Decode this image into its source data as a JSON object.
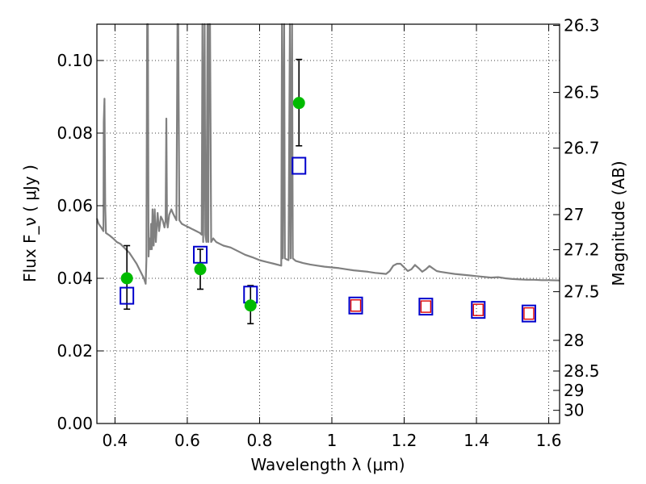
{
  "chart_data": {
    "type": "scatter",
    "xlabel": "Wavelength  λ (μm)",
    "ylabel": "Flux  F_ν ( μJy )",
    "y2label": "Magnitude (AB)",
    "xlim": [
      0.35,
      1.63
    ],
    "ylim": [
      0.0,
      0.11
    ],
    "grid": true,
    "x_ticks": [
      "0.4",
      "0.6",
      "0.8",
      "1",
      "1.2",
      "1.4",
      "1.6"
    ],
    "x_tick_values": [
      0.4,
      0.6,
      0.8,
      1.0,
      1.2,
      1.4,
      1.6
    ],
    "y_ticks": [
      "0.00",
      "0.02",
      "0.04",
      "0.06",
      "0.08",
      "0.10"
    ],
    "y_tick_values": [
      0.0,
      0.02,
      0.04,
      0.06,
      0.08,
      0.1
    ],
    "mag_ticks": [
      "26.3",
      "26.5",
      "26.7",
      "27",
      "27.2",
      "27.5",
      "28",
      "28.5",
      "29",
      "30"
    ],
    "mag_tick_values": [
      26.3,
      26.5,
      26.7,
      27.0,
      27.2,
      27.5,
      28.0,
      28.5,
      29.0,
      30.0
    ],
    "colors": {
      "template": "#808080",
      "observed": "#00bb00",
      "model_box": "#0000cc",
      "model_box_inner": "#dd0000",
      "errorbar": "#000000"
    },
    "observed": [
      {
        "x": 0.433,
        "y": 0.04,
        "yerr_low": 0.0085,
        "yerr_high": 0.009
      },
      {
        "x": 0.636,
        "y": 0.0425,
        "yerr_low": 0.0055,
        "yerr_high": 0.0055
      },
      {
        "x": 0.775,
        "y": 0.0325,
        "yerr_low": 0.005,
        "yerr_high": 0.0055
      },
      {
        "x": 0.909,
        "y": 0.0883,
        "yerr_low": 0.0118,
        "yerr_high": 0.012
      }
    ],
    "model_photometry": [
      {
        "x": 0.433,
        "y": 0.0352,
        "inner": false
      },
      {
        "x": 0.636,
        "y": 0.0465,
        "inner": false
      },
      {
        "x": 0.775,
        "y": 0.0355,
        "inner": false
      },
      {
        "x": 0.909,
        "y": 0.071,
        "inner": false
      },
      {
        "x": 1.066,
        "y": 0.0325,
        "inner": true
      },
      {
        "x": 1.26,
        "y": 0.0322,
        "inner": true
      },
      {
        "x": 1.405,
        "y": 0.0313,
        "inner": true
      },
      {
        "x": 1.545,
        "y": 0.0303,
        "inner": true
      }
    ],
    "template_spectrum": [
      [
        0.35,
        0.0565
      ],
      [
        0.355,
        0.055
      ],
      [
        0.362,
        0.054
      ],
      [
        0.368,
        0.053
      ],
      [
        0.369,
        0.083
      ],
      [
        0.371,
        0.0895
      ],
      [
        0.373,
        0.06
      ],
      [
        0.375,
        0.0525
      ],
      [
        0.385,
        0.0518
      ],
      [
        0.395,
        0.051
      ],
      [
        0.405,
        0.05
      ],
      [
        0.415,
        0.0495
      ],
      [
        0.425,
        0.0485
      ],
      [
        0.44,
        0.047
      ],
      [
        0.45,
        0.0455
      ],
      [
        0.46,
        0.044
      ],
      [
        0.47,
        0.042
      ],
      [
        0.48,
        0.04
      ],
      [
        0.485,
        0.0385
      ],
      [
        0.487,
        0.045
      ],
      [
        0.489,
        0.11
      ],
      [
        0.491,
        0.11
      ],
      [
        0.493,
        0.046
      ],
      [
        0.495,
        0.051
      ],
      [
        0.498,
        0.048
      ],
      [
        0.5,
        0.055
      ],
      [
        0.502,
        0.048
      ],
      [
        0.504,
        0.059
      ],
      [
        0.507,
        0.049
      ],
      [
        0.51,
        0.059
      ],
      [
        0.513,
        0.05
      ],
      [
        0.518,
        0.058
      ],
      [
        0.522,
        0.053
      ],
      [
        0.527,
        0.057
      ],
      [
        0.532,
        0.056
      ],
      [
        0.537,
        0.054
      ],
      [
        0.54,
        0.056
      ],
      [
        0.542,
        0.084
      ],
      [
        0.544,
        0.056
      ],
      [
        0.546,
        0.054
      ],
      [
        0.55,
        0.0575
      ],
      [
        0.556,
        0.059
      ],
      [
        0.56,
        0.058
      ],
      [
        0.565,
        0.057
      ],
      [
        0.57,
        0.056
      ],
      [
        0.573,
        0.11
      ],
      [
        0.575,
        0.11
      ],
      [
        0.578,
        0.056
      ],
      [
        0.585,
        0.055
      ],
      [
        0.595,
        0.0545
      ],
      [
        0.605,
        0.054
      ],
      [
        0.615,
        0.0535
      ],
      [
        0.625,
        0.053
      ],
      [
        0.635,
        0.0525
      ],
      [
        0.64,
        0.052
      ],
      [
        0.642,
        0.11
      ],
      [
        0.644,
        0.05
      ],
      [
        0.648,
        0.11
      ],
      [
        0.65,
        0.052
      ],
      [
        0.653,
        0.05
      ],
      [
        0.656,
        0.11
      ],
      [
        0.658,
        0.05
      ],
      [
        0.66,
        0.11
      ],
      [
        0.663,
        0.11
      ],
      [
        0.666,
        0.05
      ],
      [
        0.672,
        0.051
      ],
      [
        0.68,
        0.05
      ],
      [
        0.69,
        0.0495
      ],
      [
        0.7,
        0.049
      ],
      [
        0.72,
        0.0485
      ],
      [
        0.74,
        0.0475
      ],
      [
        0.76,
        0.0465
      ],
      [
        0.78,
        0.0458
      ],
      [
        0.8,
        0.045
      ],
      [
        0.82,
        0.0445
      ],
      [
        0.84,
        0.044
      ],
      [
        0.86,
        0.0435
      ],
      [
        0.862,
        0.11
      ],
      [
        0.864,
        0.0455
      ],
      [
        0.868,
        0.11
      ],
      [
        0.87,
        0.0455
      ],
      [
        0.875,
        0.0452
      ],
      [
        0.88,
        0.045
      ],
      [
        0.884,
        0.11
      ],
      [
        0.886,
        0.0455
      ],
      [
        0.89,
        0.11
      ],
      [
        0.892,
        0.0455
      ],
      [
        0.9,
        0.0448
      ],
      [
        0.92,
        0.0442
      ],
      [
        0.94,
        0.0438
      ],
      [
        0.96,
        0.0435
      ],
      [
        0.98,
        0.0432
      ],
      [
        1.0,
        0.043
      ],
      [
        1.02,
        0.0428
      ],
      [
        1.04,
        0.0425
      ],
      [
        1.06,
        0.0422
      ],
      [
        1.08,
        0.042
      ],
      [
        1.1,
        0.0418
      ],
      [
        1.12,
        0.0415
      ],
      [
        1.14,
        0.0413
      ],
      [
        1.15,
        0.0412
      ],
      [
        1.16,
        0.042
      ],
      [
        1.17,
        0.0435
      ],
      [
        1.18,
        0.044
      ],
      [
        1.19,
        0.044
      ],
      [
        1.2,
        0.043
      ],
      [
        1.21,
        0.042
      ],
      [
        1.22,
        0.0425
      ],
      [
        1.23,
        0.0437
      ],
      [
        1.24,
        0.0428
      ],
      [
        1.25,
        0.0418
      ],
      [
        1.26,
        0.0425
      ],
      [
        1.27,
        0.0434
      ],
      [
        1.28,
        0.0427
      ],
      [
        1.29,
        0.042
      ],
      [
        1.3,
        0.0418
      ],
      [
        1.32,
        0.0415
      ],
      [
        1.34,
        0.0412
      ],
      [
        1.36,
        0.041
      ],
      [
        1.38,
        0.0408
      ],
      [
        1.4,
        0.0406
      ],
      [
        1.42,
        0.0404
      ],
      [
        1.44,
        0.0402
      ],
      [
        1.46,
        0.0403
      ],
      [
        1.48,
        0.04
      ],
      [
        1.5,
        0.0398
      ],
      [
        1.52,
        0.0397
      ],
      [
        1.54,
        0.0396
      ],
      [
        1.56,
        0.0396
      ],
      [
        1.58,
        0.0395
      ],
      [
        1.6,
        0.0395
      ],
      [
        1.63,
        0.0394
      ]
    ]
  }
}
